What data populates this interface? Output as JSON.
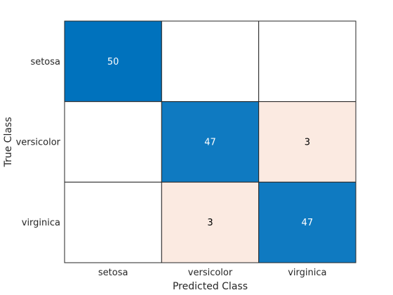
{
  "chart_data": {
    "type": "heatmap",
    "title": "",
    "xlabel": "Predicted Class",
    "ylabel": "True Class",
    "categories": [
      "setosa",
      "versicolor",
      "virginica"
    ],
    "x_categories": [
      "setosa",
      "versicolor",
      "virginica"
    ],
    "y_categories": [
      "setosa",
      "versicolor",
      "virginica"
    ],
    "values": [
      [
        50,
        0,
        0
      ],
      [
        0,
        47,
        3
      ],
      [
        0,
        3,
        47
      ]
    ],
    "colors": {
      "correct_high": "#0072bd",
      "correct_label": "#ffffff",
      "error_low": "#fbeae1",
      "error_label": "#000000",
      "empty": "#ffffff",
      "grid": "#262626"
    },
    "grid": true,
    "legend": "none"
  }
}
